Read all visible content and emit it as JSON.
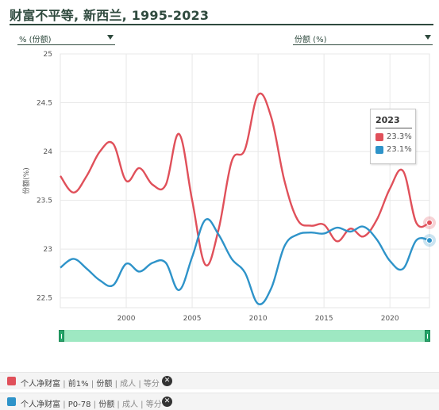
{
  "title": "财富不平等, 新西兰, 1995-2023",
  "controls": {
    "left_select": "% (份额)",
    "right_select": "份额 (%)"
  },
  "tooltip": {
    "year": "2023",
    "rows": [
      {
        "color": "#e0505a",
        "value": "23.3%"
      },
      {
        "color": "#2e93c9",
        "value": "23.1%"
      }
    ]
  },
  "legend": [
    {
      "color": "#e0505a",
      "main": "个人净财富",
      "sep1": "|",
      "group": "前1%",
      "sep2": "|",
      "kind": "份额",
      "sep3": "|",
      "pop": "成人",
      "sep4": "|",
      "split": "等分",
      "remove": "✕"
    },
    {
      "color": "#2e93c9",
      "main": "个人净财富",
      "sep1": "|",
      "group": "P0-78",
      "sep2": "|",
      "kind": "份额",
      "sep3": "|",
      "pop": "成人",
      "sep4": "|",
      "split": "等分",
      "remove": "✕"
    }
  ],
  "chart_data": {
    "type": "line",
    "title": "财富不平等, 新西兰, 1995-2023",
    "xlabel": "",
    "ylabel": "份额(%)",
    "xlim": [
      1995,
      2023
    ],
    "ylim": [
      22.4,
      25.0
    ],
    "x_ticks": [
      2000,
      2005,
      2010,
      2015,
      2020
    ],
    "y_ticks": [
      22.5,
      23,
      23.5,
      24,
      24.5,
      25
    ],
    "grid": true,
    "series": [
      {
        "name": "个人净财富 | 前1% | 份额 | 成人 | 等分",
        "color": "#e0505a",
        "x": [
          1995,
          1996,
          1997,
          1998,
          1999,
          2000,
          2001,
          2002,
          2003,
          2004,
          2005,
          2006,
          2007,
          2008,
          2009,
          2010,
          2011,
          2012,
          2013,
          2014,
          2015,
          2016,
          2017,
          2018,
          2019,
          2020,
          2021,
          2022,
          2023
        ],
        "y": [
          23.75,
          23.58,
          23.75,
          24.0,
          24.08,
          23.7,
          23.83,
          23.66,
          23.66,
          24.18,
          23.5,
          22.84,
          23.2,
          23.9,
          24.02,
          24.58,
          24.35,
          23.7,
          23.3,
          23.24,
          23.25,
          23.08,
          23.21,
          23.13,
          23.3,
          23.62,
          23.8,
          23.27,
          23.27
        ]
      },
      {
        "name": "个人净财富 | P0-78 | 份额 | 成人 | 等分",
        "color": "#2e93c9",
        "x": [
          1995,
          1996,
          1997,
          1998,
          1999,
          2000,
          2001,
          2002,
          2003,
          2004,
          2005,
          2006,
          2007,
          2008,
          2009,
          2010,
          2011,
          2012,
          2013,
          2014,
          2015,
          2016,
          2017,
          2018,
          2019,
          2020,
          2021,
          2022,
          2023
        ],
        "y": [
          22.81,
          22.9,
          22.8,
          22.68,
          22.63,
          22.85,
          22.77,
          22.86,
          22.86,
          22.58,
          22.92,
          23.3,
          23.15,
          22.9,
          22.76,
          22.44,
          22.6,
          23.03,
          23.15,
          23.17,
          23.16,
          23.22,
          23.18,
          23.23,
          23.1,
          22.88,
          22.8,
          23.09,
          23.09
        ]
      }
    ],
    "endpoint_markers": true
  }
}
